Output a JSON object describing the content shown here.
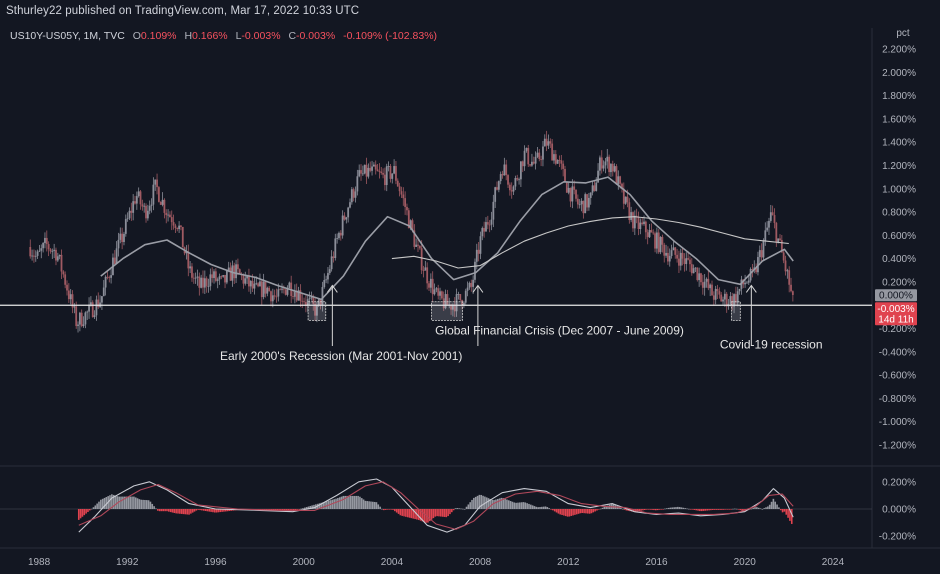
{
  "header": {
    "title": "Sthurley22 published on TradingView.com, Mar 17, 2022 10:33 UTC"
  },
  "legend": {
    "symbol": "US10Y-US05Y, 1M, TVC",
    "open_label": "O",
    "open": "0.109%",
    "high_label": "H",
    "high": "0.166%",
    "low_label": "L",
    "low": "-0.003%",
    "close_label": "C",
    "close": "-0.003%",
    "change": "-0.109% (-102.83%)"
  },
  "colors": {
    "background": "#131722",
    "up_candle": "#8c8f9a",
    "down_candle": "#a05a62",
    "sma_fast": "#9a9da6",
    "sma_slow": "#c8c8c8",
    "zero_line": "#e8e8e8",
    "badge_grey": "#9598a1",
    "badge_red": "#e0434f",
    "macd_up": "#9598a1",
    "macd_down": "#e0434f"
  },
  "chart_data": [
    {
      "type": "candlestick",
      "x_ticks": [
        "1988",
        "1992",
        "1996",
        "2000",
        "2004",
        "2008",
        "2012",
        "2016",
        "2020",
        "2024"
      ],
      "x_tick_years": [
        1988,
        1992,
        1996,
        2000,
        2004,
        2008,
        2012,
        2016,
        2020,
        2024
      ],
      "x_range": [
        1986.5,
        2025.5
      ],
      "y_unit_label": "pct",
      "y_ticks": [
        "2.200%",
        "2.000%",
        "1.800%",
        "1.600%",
        "1.400%",
        "1.200%",
        "1.000%",
        "0.800%",
        "0.600%",
        "0.400%",
        "0.200%",
        "-0.200%",
        "-0.400%",
        "-0.600%",
        "-0.800%",
        "-1.000%",
        "-1.200%"
      ],
      "y_tick_values": [
        2.2,
        2.0,
        1.8,
        1.6,
        1.4,
        1.2,
        1.0,
        0.8,
        0.6,
        0.4,
        0.2,
        -0.2,
        -0.4,
        -0.6,
        -0.8,
        -1.0,
        -1.2
      ],
      "y_range": [
        -1.26,
        2.26
      ],
      "price_keypoints": [
        [
          1987.6,
          0.5
        ],
        [
          1987.9,
          0.4
        ],
        [
          1988.3,
          0.52
        ],
        [
          1988.8,
          0.45
        ],
        [
          1989.2,
          0.2
        ],
        [
          1989.7,
          -0.15
        ],
        [
          1990.3,
          -0.05
        ],
        [
          1990.8,
          0.05
        ],
        [
          1991.3,
          0.35
        ],
        [
          1991.8,
          0.6
        ],
        [
          1992.4,
          0.95
        ],
        [
          1992.8,
          0.8
        ],
        [
          1993.3,
          1.02
        ],
        [
          1993.8,
          0.8
        ],
        [
          1994.3,
          0.7
        ],
        [
          1994.8,
          0.3
        ],
        [
          1995.3,
          0.15
        ],
        [
          1995.8,
          0.25
        ],
        [
          1996.3,
          0.18
        ],
        [
          1996.8,
          0.3
        ],
        [
          1997.3,
          0.22
        ],
        [
          1997.8,
          0.12
        ],
        [
          1998.3,
          0.15
        ],
        [
          1998.8,
          0.05
        ],
        [
          1999.3,
          0.18
        ],
        [
          1999.8,
          0.1
        ],
        [
          2000.2,
          0.02
        ],
        [
          2000.6,
          -0.05
        ],
        [
          2001.0,
          0.2
        ],
        [
          2001.5,
          0.55
        ],
        [
          2002.0,
          0.85
        ],
        [
          2002.5,
          1.1
        ],
        [
          2003.0,
          1.15
        ],
        [
          2003.6,
          1.1
        ],
        [
          2004.1,
          1.15
        ],
        [
          2004.6,
          0.85
        ],
        [
          2005.1,
          0.5
        ],
        [
          2005.6,
          0.25
        ],
        [
          2006.1,
          0.05
        ],
        [
          2006.6,
          0.0
        ],
        [
          2007.1,
          0.05
        ],
        [
          2007.6,
          0.15
        ],
        [
          2008.0,
          0.55
        ],
        [
          2008.5,
          0.8
        ],
        [
          2009.0,
          1.2
        ],
        [
          2009.5,
          1.0
        ],
        [
          2010.0,
          1.3
        ],
        [
          2010.5,
          1.2
        ],
        [
          2011.0,
          1.4
        ],
        [
          2011.5,
          1.25
        ],
        [
          2012.0,
          1.0
        ],
        [
          2012.5,
          0.85
        ],
        [
          2013.0,
          0.9
        ],
        [
          2013.5,
          1.25
        ],
        [
          2014.0,
          1.2
        ],
        [
          2014.5,
          0.9
        ],
        [
          2015.0,
          0.7
        ],
        [
          2015.5,
          0.65
        ],
        [
          2016.0,
          0.55
        ],
        [
          2016.5,
          0.45
        ],
        [
          2017.0,
          0.42
        ],
        [
          2017.5,
          0.35
        ],
        [
          2018.0,
          0.25
        ],
        [
          2018.5,
          0.1
        ],
        [
          2019.0,
          0.05
        ],
        [
          2019.5,
          0.05
        ],
        [
          2020.0,
          0.2
        ],
        [
          2020.4,
          0.25
        ],
        [
          2020.8,
          0.5
        ],
        [
          2021.2,
          0.78
        ],
        [
          2021.6,
          0.5
        ],
        [
          2022.0,
          0.2
        ],
        [
          2022.2,
          -0.003
        ]
      ],
      "sma_fast_keypoints": [
        [
          1990.8,
          0.25
        ],
        [
          1991.8,
          0.4
        ],
        [
          1992.8,
          0.52
        ],
        [
          1993.8,
          0.56
        ],
        [
          1994.8,
          0.45
        ],
        [
          1995.8,
          0.35
        ],
        [
          1996.8,
          0.28
        ],
        [
          1997.8,
          0.24
        ],
        [
          1998.8,
          0.17
        ],
        [
          1999.8,
          0.11
        ],
        [
          2000.8,
          0.05
        ],
        [
          2001.8,
          0.25
        ],
        [
          2002.8,
          0.55
        ],
        [
          2003.8,
          0.76
        ],
        [
          2004.8,
          0.68
        ],
        [
          2005.8,
          0.4
        ],
        [
          2006.8,
          0.22
        ],
        [
          2007.8,
          0.28
        ],
        [
          2008.8,
          0.45
        ],
        [
          2009.8,
          0.72
        ],
        [
          2010.8,
          0.95
        ],
        [
          2011.8,
          1.06
        ],
        [
          2012.8,
          1.05
        ],
        [
          2013.8,
          1.1
        ],
        [
          2014.8,
          0.95
        ],
        [
          2015.8,
          0.72
        ],
        [
          2016.8,
          0.55
        ],
        [
          2017.8,
          0.4
        ],
        [
          2018.8,
          0.22
        ],
        [
          2019.8,
          0.18
        ],
        [
          2020.8,
          0.38
        ],
        [
          2021.8,
          0.48
        ],
        [
          2022.2,
          0.38
        ]
      ],
      "sma_slow_keypoints": [
        [
          2004.0,
          0.4
        ],
        [
          2005.0,
          0.42
        ],
        [
          2006.0,
          0.38
        ],
        [
          2007.0,
          0.32
        ],
        [
          2008.0,
          0.34
        ],
        [
          2009.0,
          0.45
        ],
        [
          2010.0,
          0.55
        ],
        [
          2011.0,
          0.62
        ],
        [
          2012.0,
          0.68
        ],
        [
          2013.0,
          0.72
        ],
        [
          2014.0,
          0.75
        ],
        [
          2015.0,
          0.76
        ],
        [
          2016.0,
          0.74
        ],
        [
          2017.0,
          0.71
        ],
        [
          2018.0,
          0.67
        ],
        [
          2019.0,
          0.62
        ],
        [
          2020.0,
          0.57
        ],
        [
          2021.0,
          0.55
        ],
        [
          2022.0,
          0.53
        ]
      ],
      "last_value_labels": [
        "0.000%",
        "-0.003%",
        "14d 11h"
      ],
      "annotations": [
        {
          "text": "Early 2000's Recession (Mar 2001-Nov 2001)",
          "x_start": 2000.2,
          "x_end": 2001.0,
          "arrow_x": 2001.3
        },
        {
          "text": "Global Financial Crisis (Dec 2007 - June 2009)",
          "x_start": 2005.8,
          "x_end": 2007.2,
          "arrow_x": 2007.9
        },
        {
          "text": "Covid-19 recession",
          "x_start": 2019.4,
          "x_end": 2019.8,
          "arrow_x": 2020.3
        }
      ]
    },
    {
      "type": "bar",
      "indicator": "macd",
      "y_ticks": [
        "0.200%",
        "0.000%",
        "-0.200%"
      ],
      "y_tick_values": [
        0.2,
        0.0,
        -0.2
      ],
      "y_range": [
        -0.235,
        0.235
      ],
      "macd_keypoints": [
        [
          1989.8,
          -0.17
        ],
        [
          1990.5,
          -0.06
        ],
        [
          1991.3,
          0.08
        ],
        [
          1992.3,
          0.17
        ],
        [
          1993.0,
          0.2
        ],
        [
          1993.8,
          0.14
        ],
        [
          1994.8,
          0.04
        ],
        [
          1996.0,
          0.0
        ],
        [
          1998.0,
          -0.01
        ],
        [
          1999.5,
          -0.02
        ],
        [
          2000.5,
          0.01
        ],
        [
          2001.5,
          0.1
        ],
        [
          2002.5,
          0.2
        ],
        [
          2003.3,
          0.22
        ],
        [
          2004.0,
          0.16
        ],
        [
          2004.8,
          0.02
        ],
        [
          2005.6,
          -0.12
        ],
        [
          2006.5,
          -0.17
        ],
        [
          2007.3,
          -0.12
        ],
        [
          2008.0,
          0.02
        ],
        [
          2009.0,
          0.12
        ],
        [
          2010.0,
          0.15
        ],
        [
          2011.0,
          0.13
        ],
        [
          2012.0,
          0.04
        ],
        [
          2013.0,
          0.01
        ],
        [
          2014.0,
          0.04
        ],
        [
          2015.0,
          -0.02
        ],
        [
          2016.0,
          -0.04
        ],
        [
          2017.0,
          -0.03
        ],
        [
          2018.0,
          -0.05
        ],
        [
          2019.0,
          -0.04
        ],
        [
          2020.0,
          -0.02
        ],
        [
          2020.8,
          0.06
        ],
        [
          2021.3,
          0.15
        ],
        [
          2021.8,
          0.08
        ],
        [
          2022.2,
          -0.06
        ]
      ],
      "signal_keypoints": [
        [
          1989.8,
          -0.12
        ],
        [
          1990.8,
          -0.05
        ],
        [
          1991.6,
          0.05
        ],
        [
          1992.6,
          0.14
        ],
        [
          1993.4,
          0.18
        ],
        [
          1994.2,
          0.12
        ],
        [
          1995.2,
          0.03
        ],
        [
          1997.0,
          0.0
        ],
        [
          1999.0,
          -0.01
        ],
        [
          2000.5,
          -0.01
        ],
        [
          2001.8,
          0.07
        ],
        [
          2002.8,
          0.17
        ],
        [
          2003.6,
          0.2
        ],
        [
          2004.4,
          0.12
        ],
        [
          2005.2,
          0.0
        ],
        [
          2006.0,
          -0.11
        ],
        [
          2006.9,
          -0.15
        ],
        [
          2007.7,
          -0.09
        ],
        [
          2008.6,
          0.04
        ],
        [
          2009.6,
          0.11
        ],
        [
          2010.6,
          0.13
        ],
        [
          2011.6,
          0.1
        ],
        [
          2012.6,
          0.04
        ],
        [
          2013.6,
          0.02
        ],
        [
          2014.6,
          0.01
        ],
        [
          2015.6,
          -0.03
        ],
        [
          2016.6,
          -0.04
        ],
        [
          2017.6,
          -0.04
        ],
        [
          2018.6,
          -0.04
        ],
        [
          2019.6,
          -0.03
        ],
        [
          2020.5,
          0.02
        ],
        [
          2021.1,
          0.1
        ],
        [
          2021.7,
          0.11
        ],
        [
          2022.2,
          0.02
        ]
      ]
    }
  ]
}
